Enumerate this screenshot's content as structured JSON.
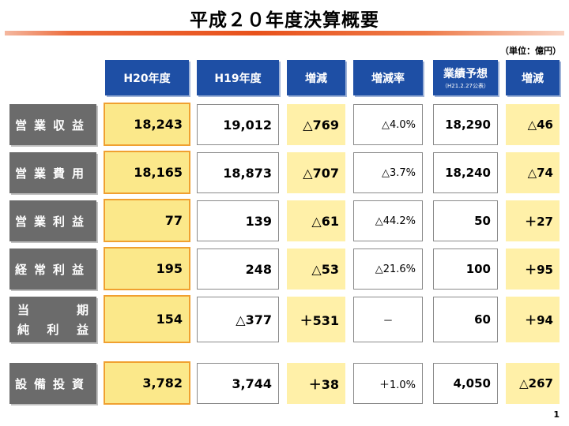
{
  "title": "平成２０年度決算概要",
  "unit": "（単位：億円）",
  "headers": {
    "h20": "H20年度",
    "h19": "H19年度",
    "diff": "増減",
    "rate": "増減率",
    "forecast": "業績予想",
    "forecast_sub": "（H21.2.27公表）",
    "forecast_diff": "増減"
  },
  "rows": [
    {
      "label": "営業収益",
      "h20": "18,243",
      "h19": "19,012",
      "diff": "△769",
      "rate": "△4.0%",
      "forecast": "18,290",
      "forecast_diff": "△46"
    },
    {
      "label": "営業費用",
      "h20": "18,165",
      "h19": "18,873",
      "diff": "△707",
      "rate": "△3.7%",
      "forecast": "18,240",
      "forecast_diff": "△74"
    },
    {
      "label": "営業利益",
      "h20": "77",
      "h19": "139",
      "diff": "△61",
      "rate": "△44.2%",
      "forecast": "50",
      "forecast_diff": "＋27"
    },
    {
      "label": "経常利益",
      "h20": "195",
      "h19": "248",
      "diff": "△53",
      "rate": "△21.6%",
      "forecast": "100",
      "forecast_diff": "＋95"
    },
    {
      "label_line1": [
        "当",
        "期"
      ],
      "label_line2": [
        "純",
        "利",
        "益"
      ],
      "h20": "154",
      "h19": "△377",
      "diff": "＋531",
      "rate": "－",
      "forecast": "60",
      "forecast_diff": "＋94"
    },
    {
      "label": "設備投資",
      "h20": "3,782",
      "h19": "3,744",
      "diff": "＋38",
      "rate": "＋1.0%",
      "forecast": "4,050",
      "forecast_diff": "△267"
    }
  ],
  "page_number": "1"
}
